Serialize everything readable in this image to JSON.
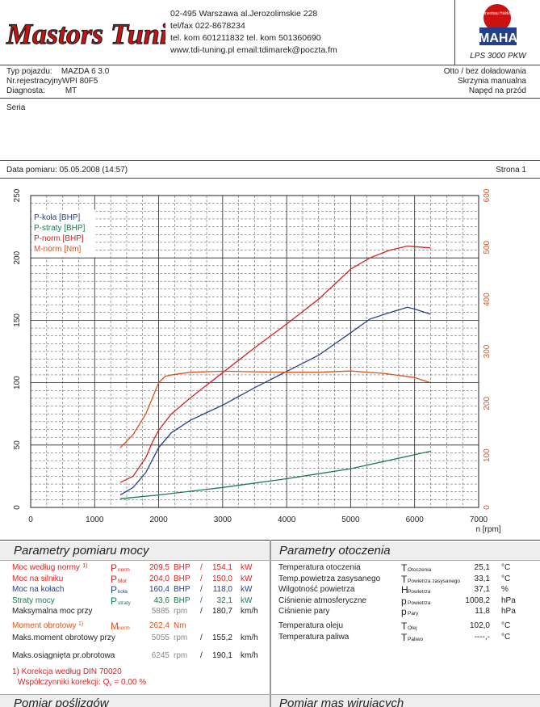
{
  "header": {
    "logo_text": "Mastors Tuning",
    "address": [
      "02-495 Warszawa al.Jerozolimskie 228",
      "tel/fax 022-8678234",
      "tel. kom 601211832   tel. kom 501360690",
      "www.tdi-tuning.pl    email:tdimarek@poczta.fm"
    ],
    "maha_badge": "Maschinenbau Haldenwang",
    "maha_logo": "MAHA",
    "maha_model": "LPS 3000 PKW"
  },
  "vehicle": {
    "type_label": "Typ pojazdu:",
    "type_value": "MAZDA 6 3.0",
    "reg_label": "Nr.rejestracyjny",
    "reg_value": "WPI 80F5",
    "diag_label": "Diagnosta:",
    "diag_value": "MT",
    "right1": "Otto / bez doładowania",
    "right2": "Skrzynia manualna",
    "right3": "Napęd na przód"
  },
  "notes_label": "Seria",
  "measure_date": "Data pomiaru: 05.05.2008 (14:57)",
  "page_label": "Strona 1",
  "chart_data": {
    "type": "line",
    "x_unit_label": "n [rpm]",
    "xlim": [
      0,
      7000
    ],
    "x_ticks": [
      0,
      1000,
      2000,
      3000,
      4000,
      5000,
      6000,
      7000
    ],
    "ylim_left": [
      0,
      250
    ],
    "y_ticks_left": [
      0,
      50,
      100,
      150,
      200,
      250
    ],
    "ylim_right": [
      0,
      600
    ],
    "y_ticks_right": [
      0,
      100,
      200,
      300,
      400,
      500,
      600
    ],
    "legend": [
      "P-koła [BHP]",
      "P-straty [BHP]",
      "P-norm [BHP]",
      "M-norm [Nm]"
    ],
    "series": [
      {
        "name": "P-koła [BHP]",
        "color": "#24408a",
        "axis": "left",
        "x": [
          1400,
          1600,
          1800,
          1900,
          2000,
          2200,
          2500,
          3000,
          3500,
          4000,
          4500,
          5000,
          5300,
          5600,
          5885,
          6000,
          6245
        ],
        "y": [
          10,
          16,
          28,
          38,
          48,
          60,
          70,
          82,
          96,
          109,
          122,
          140,
          151,
          156,
          160.4,
          159,
          155
        ]
      },
      {
        "name": "P-straty [BHP]",
        "color": "#1a7a4a",
        "axis": "left",
        "x": [
          1400,
          2000,
          3000,
          4000,
          5000,
          6245
        ],
        "y": [
          7,
          10,
          16,
          23,
          31,
          45
        ]
      },
      {
        "name": "P-norm [BHP]",
        "color": "#d22222",
        "axis": "left",
        "x": [
          1400,
          1600,
          1800,
          1900,
          2000,
          2200,
          2500,
          3000,
          3500,
          4000,
          4500,
          5000,
          5300,
          5600,
          5885,
          6000,
          6245
        ],
        "y": [
          20,
          25,
          40,
          52,
          62,
          75,
          88,
          108,
          128,
          147,
          167,
          191,
          200,
          206,
          209.5,
          209,
          208
        ]
      },
      {
        "name": "M-norm [Nm]",
        "color": "#e0501a",
        "axis": "right",
        "x": [
          1400,
          1600,
          1800,
          1900,
          2000,
          2100,
          2200,
          2500,
          3000,
          3500,
          4000,
          4500,
          5000,
          5500,
          6000,
          6245
        ],
        "y": [
          115,
          140,
          180,
          210,
          240,
          252,
          255,
          260,
          262,
          261,
          260,
          260,
          262.4,
          258,
          250,
          240
        ]
      }
    ]
  },
  "params": {
    "title": "Parametry pomiaru mocy",
    "rows": [
      {
        "label": "Moc według normy",
        "note": "1)",
        "sym": "P",
        "sub": "norm",
        "v1": "209,5",
        "u1": "BHP",
        "sep": "/",
        "v2": "154,1",
        "u2": "kW",
        "cls": "red"
      },
      {
        "label": "Moc na silniku",
        "note": "",
        "sym": "P",
        "sub": "Mot",
        "v1": "204,0",
        "u1": "BHP",
        "sep": "/",
        "v2": "150,0",
        "u2": "kW",
        "cls": "red"
      },
      {
        "label": "Moc na kołach",
        "note": "",
        "sym": "P",
        "sub": "koła",
        "v1": "160,4",
        "u1": "BHP",
        "sep": "/",
        "v2": "118,0",
        "u2": "kW",
        "cls": "blue"
      },
      {
        "label": "Straty mocy",
        "note": "",
        "sym": "P",
        "sub": "straty",
        "v1": "43,6",
        "u1": "BHP",
        "sep": "/",
        "v2": "32,1",
        "u2": "kW",
        "cls": "green"
      },
      {
        "label": "Maksymalna moc przy",
        "note": "",
        "sym": "",
        "sub": "",
        "v1": "5885",
        "u1": "rpm",
        "sep": "/",
        "v2": "180,7",
        "u2": "km/h",
        "cls": ""
      }
    ],
    "torque_rows": [
      {
        "label": "Moment obrotowy",
        "note": "1)",
        "sym": "M",
        "sub": "norm",
        "v1": "262,4",
        "u1": "Nm",
        "sep": "",
        "v2": "",
        "u2": "",
        "cls": "orange"
      },
      {
        "label": "Maks.moment obrotowy przy",
        "note": "",
        "sym": "",
        "sub": "",
        "v1": "5055",
        "u1": "rpm",
        "sep": "/",
        "v2": "155,2",
        "u2": "km/h",
        "cls": ""
      }
    ],
    "max_rpm_row": {
      "label": "Maks.osiągnięta pr.obrotowa",
      "v1": "6245",
      "u1": "rpm",
      "sep": "/",
      "v2": "190,1",
      "u2": "km/h"
    },
    "correction_note": "1) Korekcja według DIN 70020",
    "correction_factor_label": "Współczynniki korekcji: Q",
    "correction_factor_sub": "v",
    "correction_factor_value": "=    0,00 %"
  },
  "env": {
    "title": "Parametry otoczenia",
    "rows": [
      {
        "label": "Temperatura otoczenia",
        "sym": "T",
        "sub": "Otoczenia",
        "val": "25,1",
        "unit": "°C"
      },
      {
        "label": "Temp.powietrza zasysanego",
        "sym": "T",
        "sub": "Powietrza zasysanego",
        "val": "33,1",
        "unit": "°C"
      },
      {
        "label": "Wilgotność powietrza",
        "sym": "H",
        "sub": "Powietrza",
        "val": "37,1",
        "unit": "%"
      },
      {
        "label": "Ciśnienie atmosferyczne",
        "sym": "p",
        "sub": "Powietrza",
        "val": "1008,2",
        "unit": "hPa"
      },
      {
        "label": "Ciśnienie pary",
        "sym": "p",
        "sub": "Pary",
        "val": "11,8",
        "unit": "hPa"
      }
    ],
    "rows2": [
      {
        "label": "Temperatura oleju",
        "sym": "T",
        "sub": "Olej",
        "val": "102,0",
        "unit": "°C"
      },
      {
        "label": "Temperatura paliwa",
        "sym": "T",
        "sub": "Paliwo",
        "val": "----,-",
        "unit": "°C"
      }
    ]
  },
  "footer": {
    "left_title": "Pomiar poślizgów",
    "right_title": "Pomiar mas wirujących"
  }
}
